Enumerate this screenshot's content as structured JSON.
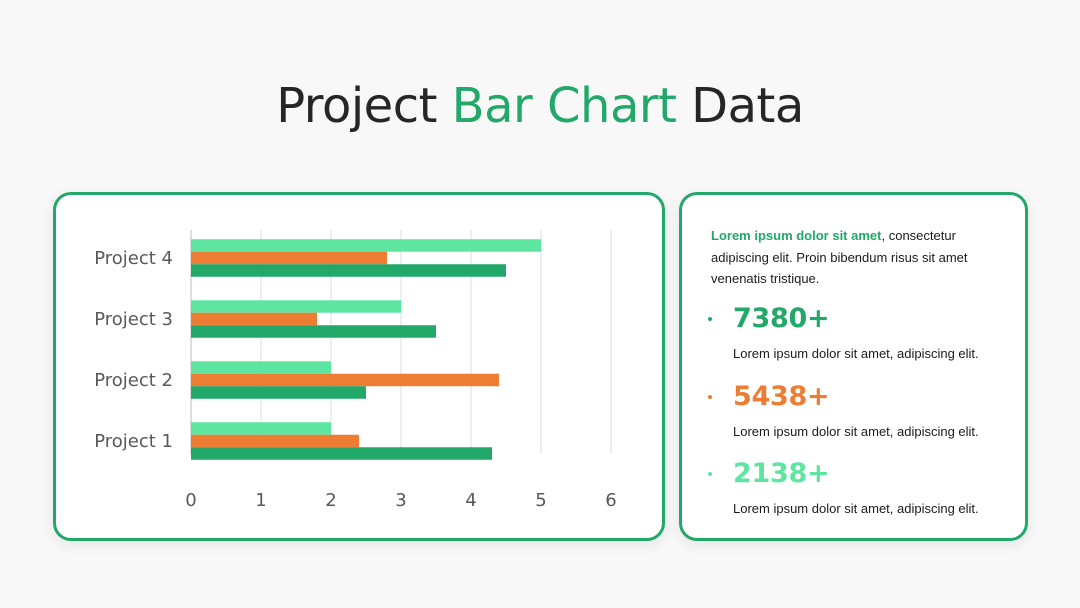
{
  "title": {
    "part1": "Project ",
    "part2": "Bar Chart",
    "part3": " Data"
  },
  "colors": {
    "accent": "#22a869",
    "series_light": "#5ee5a0",
    "series_orange": "#ec7d33",
    "series_green": "#22a869",
    "text": "#262626"
  },
  "chart_data": {
    "type": "bar",
    "orientation": "horizontal",
    "categories": [
      "Project 1",
      "Project 2",
      "Project 3",
      "Project 4"
    ],
    "series": [
      {
        "values": [
          2.0,
          2.0,
          3.0,
          5.0
        ],
        "color": "#5ee5a0"
      },
      {
        "values": [
          2.4,
          4.4,
          1.8,
          2.8
        ],
        "color": "#ec7d33"
      },
      {
        "values": [
          4.3,
          2.5,
          3.5,
          4.5
        ],
        "color": "#22a869"
      }
    ],
    "x_ticks": [
      "0",
      "1",
      "2",
      "3",
      "4",
      "5",
      "6"
    ],
    "xlim": [
      0,
      6
    ],
    "grid": true,
    "title": "",
    "xlabel": "",
    "ylabel": ""
  },
  "info": {
    "intro_highlight": "Lorem ipsum dolor sit amet",
    "intro_rest": ", consectetur adipiscing elit. Proin bibendum risus sit amet venenatis tristique.",
    "stats": [
      {
        "value": "7380+",
        "description": "Lorem ipsum dolor sit amet, adipiscing elit.",
        "color": "#22a869"
      },
      {
        "value": "5438+",
        "description": "Lorem ipsum dolor sit amet, adipiscing elit.",
        "color": "#ec7d33"
      },
      {
        "value": "2138+",
        "description": "Lorem ipsum dolor sit amet, adipiscing elit.",
        "color": "#5ee5a0"
      }
    ]
  }
}
